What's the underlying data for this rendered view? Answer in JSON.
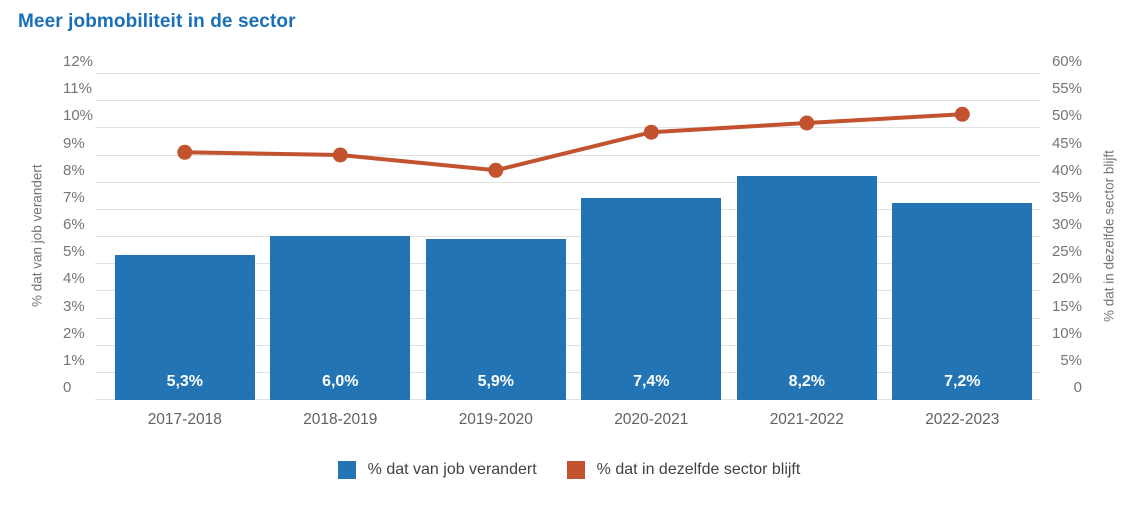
{
  "title": "Meer jobmobiliteit in de sector",
  "colors": {
    "title": "#1a70b8",
    "bar": "#2274b5",
    "line": "#c2532e",
    "grid": "#e2e2e2",
    "tick_label": "#757575",
    "axis_title": "#757575",
    "x_label": "#616161",
    "bar_label": "#ffffff",
    "legend_text": "#424242",
    "background": "#ffffff"
  },
  "chart_data": {
    "type": "bar",
    "title": "Meer jobmobiliteit in de sector",
    "categories": [
      "2017-2018",
      "2018-2019",
      "2019-2020",
      "2020-2021",
      "2021-2022",
      "2022-2023"
    ],
    "series": [
      {
        "name": "% dat van job verandert",
        "type": "bar",
        "axis": "left",
        "color": "#2274b5",
        "values": [
          5.3,
          6.0,
          5.9,
          7.4,
          8.2,
          7.2
        ],
        "labels": [
          "5,3%",
          "6,0%",
          "5,9%",
          "7,4%",
          "8,2%",
          "7,2%"
        ]
      },
      {
        "name": "% dat in dezelfde sector blijft",
        "type": "line",
        "axis": "right",
        "color": "#c2532e",
        "values": [
          45.4,
          44.9,
          42.1,
          49.1,
          50.8,
          52.4
        ]
      }
    ],
    "left_axis": {
      "label": "% dat van job verandert",
      "min": 0,
      "max": 12,
      "ticks": [
        "12%",
        "11%",
        "10%",
        "9%",
        "8%",
        "7%",
        "6%",
        "5%",
        "4%",
        "3%",
        "2%",
        "1%",
        "0"
      ],
      "tick_values": [
        12,
        11,
        10,
        9,
        8,
        7,
        6,
        5,
        4,
        3,
        2,
        1,
        0
      ]
    },
    "right_axis": {
      "label": "% dat in dezelfde sector blijft",
      "min": 0,
      "max": 60,
      "ticks": [
        "60%",
        "55%",
        "50%",
        "45%",
        "40%",
        "35%",
        "30%",
        "25%",
        "20%",
        "15%",
        "10%",
        "5%",
        "0"
      ],
      "tick_values": [
        60,
        55,
        50,
        45,
        40,
        35,
        30,
        25,
        20,
        15,
        10,
        5,
        0
      ]
    },
    "grid": true,
    "legend_position": "bottom"
  }
}
